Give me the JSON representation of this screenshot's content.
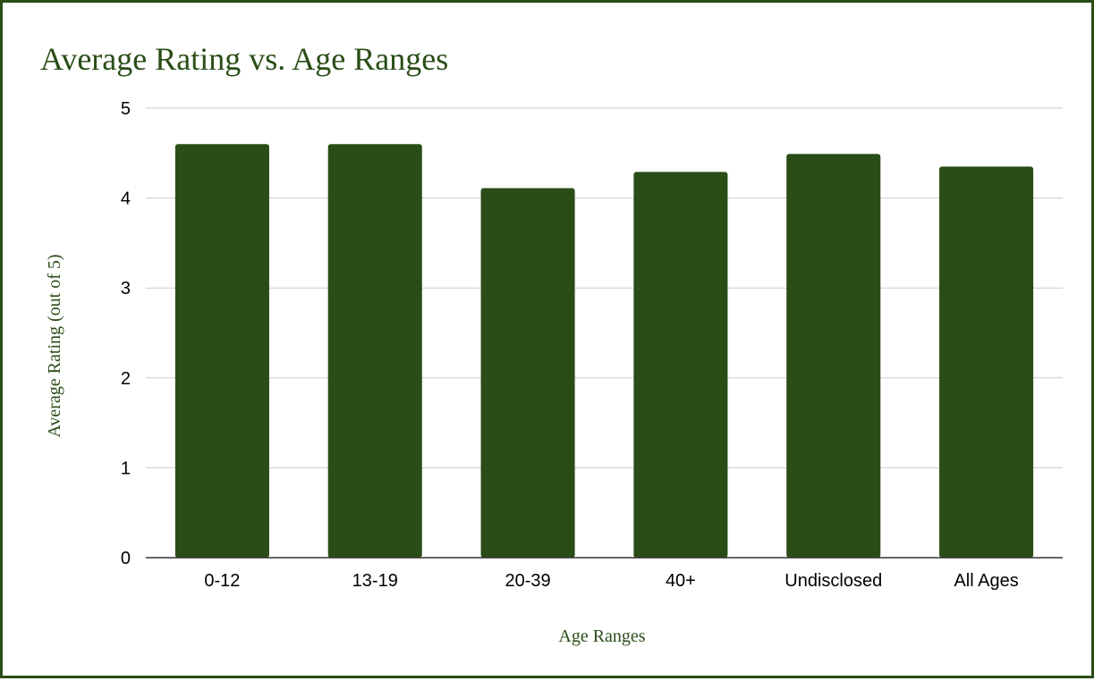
{
  "chart_data": {
    "type": "bar",
    "title": "Average Rating vs. Age Ranges",
    "xlabel": "Age Ranges",
    "ylabel": "Average Rating (out of 5)",
    "categories": [
      "0-12",
      "13-19",
      "20-39",
      "40+",
      "Undisclosed",
      "All Ages"
    ],
    "values": [
      4.6,
      4.6,
      4.11,
      4.29,
      4.49,
      4.35
    ],
    "ylim": [
      0,
      5
    ],
    "yticks": [
      0,
      1,
      2,
      3,
      4,
      5
    ],
    "grid": true,
    "legend": "none",
    "bar_color": "#2a4d17"
  }
}
